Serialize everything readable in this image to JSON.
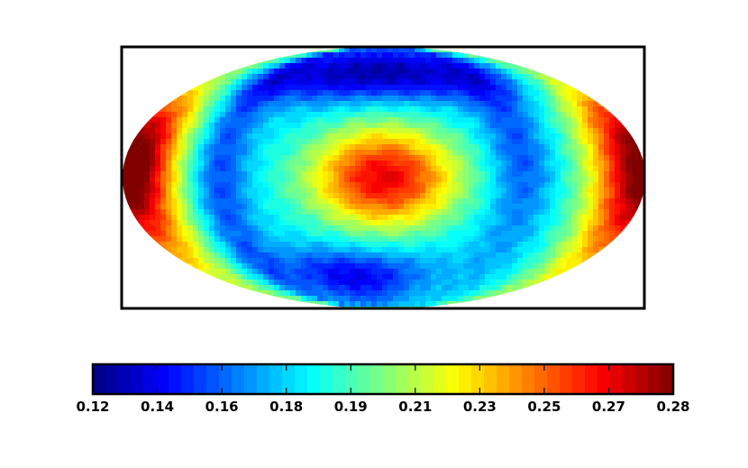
{
  "chart_data": {
    "type": "heatmap",
    "projection": "mollweide",
    "title": "",
    "colormap": "jet",
    "colorbar": {
      "orientation": "horizontal",
      "position": "bottom",
      "min": 0.12,
      "max": 0.28,
      "tick_labels": [
        "0.12",
        "0.14",
        "0.16",
        "0.18",
        "0.19",
        "0.21",
        "0.23",
        "0.25",
        "0.27",
        "0.28"
      ],
      "levels": 46
    },
    "features": [
      {
        "region": "center",
        "lon": 0,
        "lat": 0,
        "value": 0.262,
        "kind": "maximum"
      },
      {
        "region": "left-edge",
        "lon": -165,
        "lat": 5,
        "value": 0.28,
        "kind": "maximum"
      },
      {
        "region": "right-edge",
        "lon": 175,
        "lat": 0,
        "value": 0.27,
        "kind": "maximum"
      },
      {
        "region": "top",
        "lon": 0,
        "lat": 72,
        "value": 0.125,
        "kind": "minimum"
      },
      {
        "region": "lower-left",
        "lon": -35,
        "lat": -65,
        "value": 0.13,
        "kind": "minimum"
      }
    ],
    "grid": false,
    "legend": "none"
  }
}
